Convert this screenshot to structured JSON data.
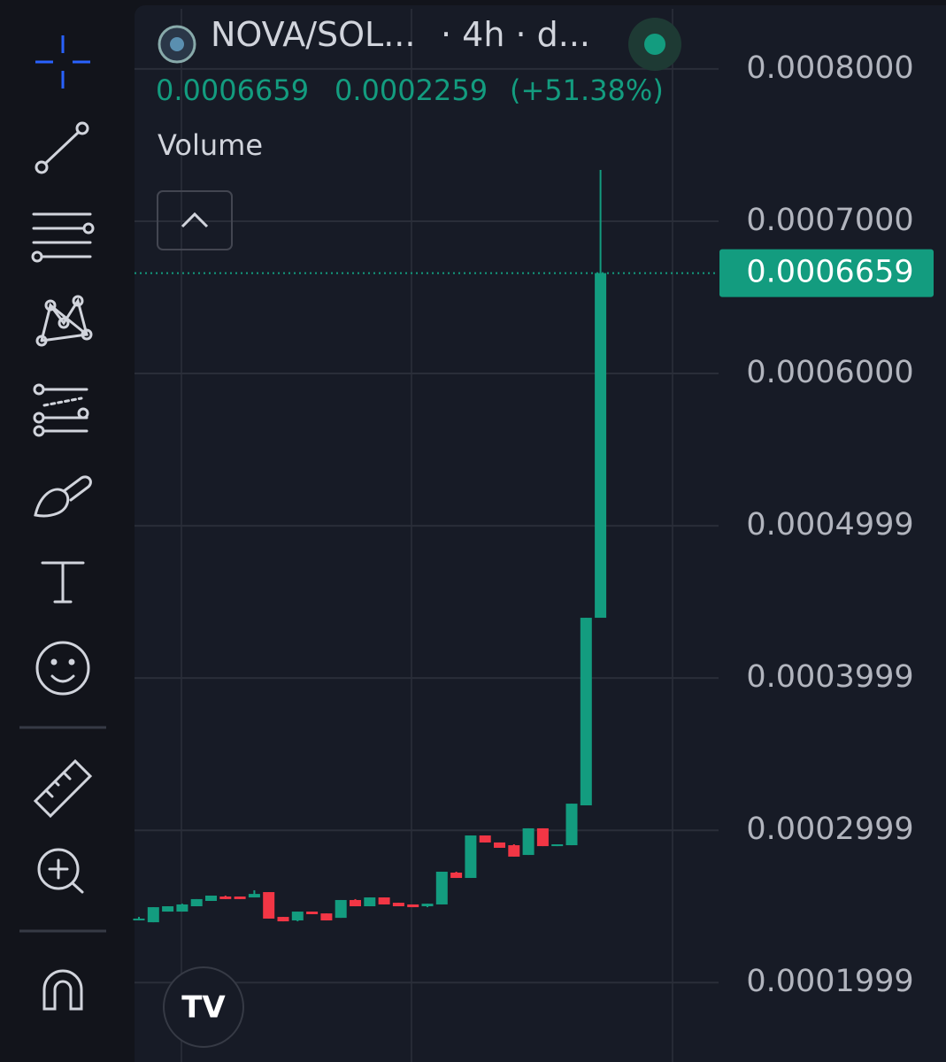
{
  "chart_data": {
    "type": "candlestick",
    "symbol": "NOVA/SOL...",
    "interval": "· 4h · d...",
    "last_price": 0.0006659,
    "change": 0.0002259,
    "change_percent": "(+51.38%)",
    "indicator": "Volume",
    "up_color": "#139c7f",
    "down_color": "#f23645",
    "categories": [
      null,
      null,
      null,
      null,
      null,
      null,
      null,
      null,
      null,
      null,
      null,
      null,
      null,
      null,
      null,
      null,
      null,
      null,
      null,
      null,
      null,
      null,
      null,
      null,
      null,
      null,
      null,
      null,
      null,
      null,
      null,
      null,
      null
    ],
    "open": [
      0.0002419,
      0.0002395,
      0.0002465,
      0.0002465,
      0.00025,
      0.0002535,
      0.0002564,
      0.0002564,
      0.0002558,
      0.0002593,
      0.000243,
      0.0002407,
      0.0002465,
      0.0002453,
      0.0002424,
      0.0002541,
      0.00025,
      0.0002558,
      0.0002523,
      0.0002512,
      0.00025,
      0.0002512,
      0.0002721,
      0.0002686,
      0.0002965,
      0.0002919,
      0.0002901,
      0.0002837,
      0.0003012,
      0.0002895,
      0.0002901,
      0.0003163,
      0.0004395
    ],
    "high": [
      0.000243,
      0.0002494,
      0.00025,
      0.0002517,
      0.0002547,
      0.000257,
      0.000257,
      0.0002564,
      0.0002605,
      0.0002593,
      0.000243,
      0.0002465,
      0.0002465,
      0.0002453,
      0.0002541,
      0.0002547,
      0.0002558,
      0.0002558,
      0.0002523,
      0.0002512,
      0.0002517,
      0.0002727,
      0.0002727,
      0.0002965,
      0.0002965,
      0.0002919,
      0.0002907,
      0.0003012,
      0.0003012,
      0.0002907,
      0.0003174,
      0.0004395,
      0.0007337
    ],
    "low": [
      0.0002407,
      0.0002395,
      0.0002465,
      0.0002465,
      0.00025,
      0.0002535,
      0.0002547,
      0.0002547,
      0.0002558,
      0.0002419,
      0.0002401,
      0.0002401,
      0.0002448,
      0.0002407,
      0.0002424,
      0.00025,
      0.00025,
      0.0002512,
      0.00025,
      0.0002494,
      0.0002494,
      0.0002512,
      0.0002686,
      0.0002686,
      0.0002919,
      0.0002884,
      0.0002826,
      0.0002837,
      0.0002895,
      0.0002895,
      0.0002901,
      0.0003163,
      0.0004395
    ],
    "close": [
      0.0002419,
      0.0002494,
      0.00025,
      0.0002512,
      0.0002547,
      0.000257,
      0.0002547,
      0.0002547,
      0.0002581,
      0.0002419,
      0.0002401,
      0.0002465,
      0.0002448,
      0.0002407,
      0.0002541,
      0.00025,
      0.0002558,
      0.0002512,
      0.00025,
      0.0002494,
      0.0002517,
      0.0002727,
      0.0002686,
      0.0002965,
      0.0002919,
      0.0002884,
      0.0002826,
      0.0003012,
      0.0002895,
      0.0002907,
      0.0003174,
      0.0004395,
      0.0006659
    ],
    "ylim": [
      0.0001477,
      0.0008453
    ],
    "yticks": [
      {
        "value": 0.0008,
        "label": "0.0008000"
      },
      {
        "value": 0.0007,
        "label": "0.0007000"
      },
      {
        "value": 0.0006,
        "label": "0.0006000"
      },
      0.0004999,
      0.0003999,
      0.0002999,
      0.0001999
    ],
    "grid": true
  }
}
